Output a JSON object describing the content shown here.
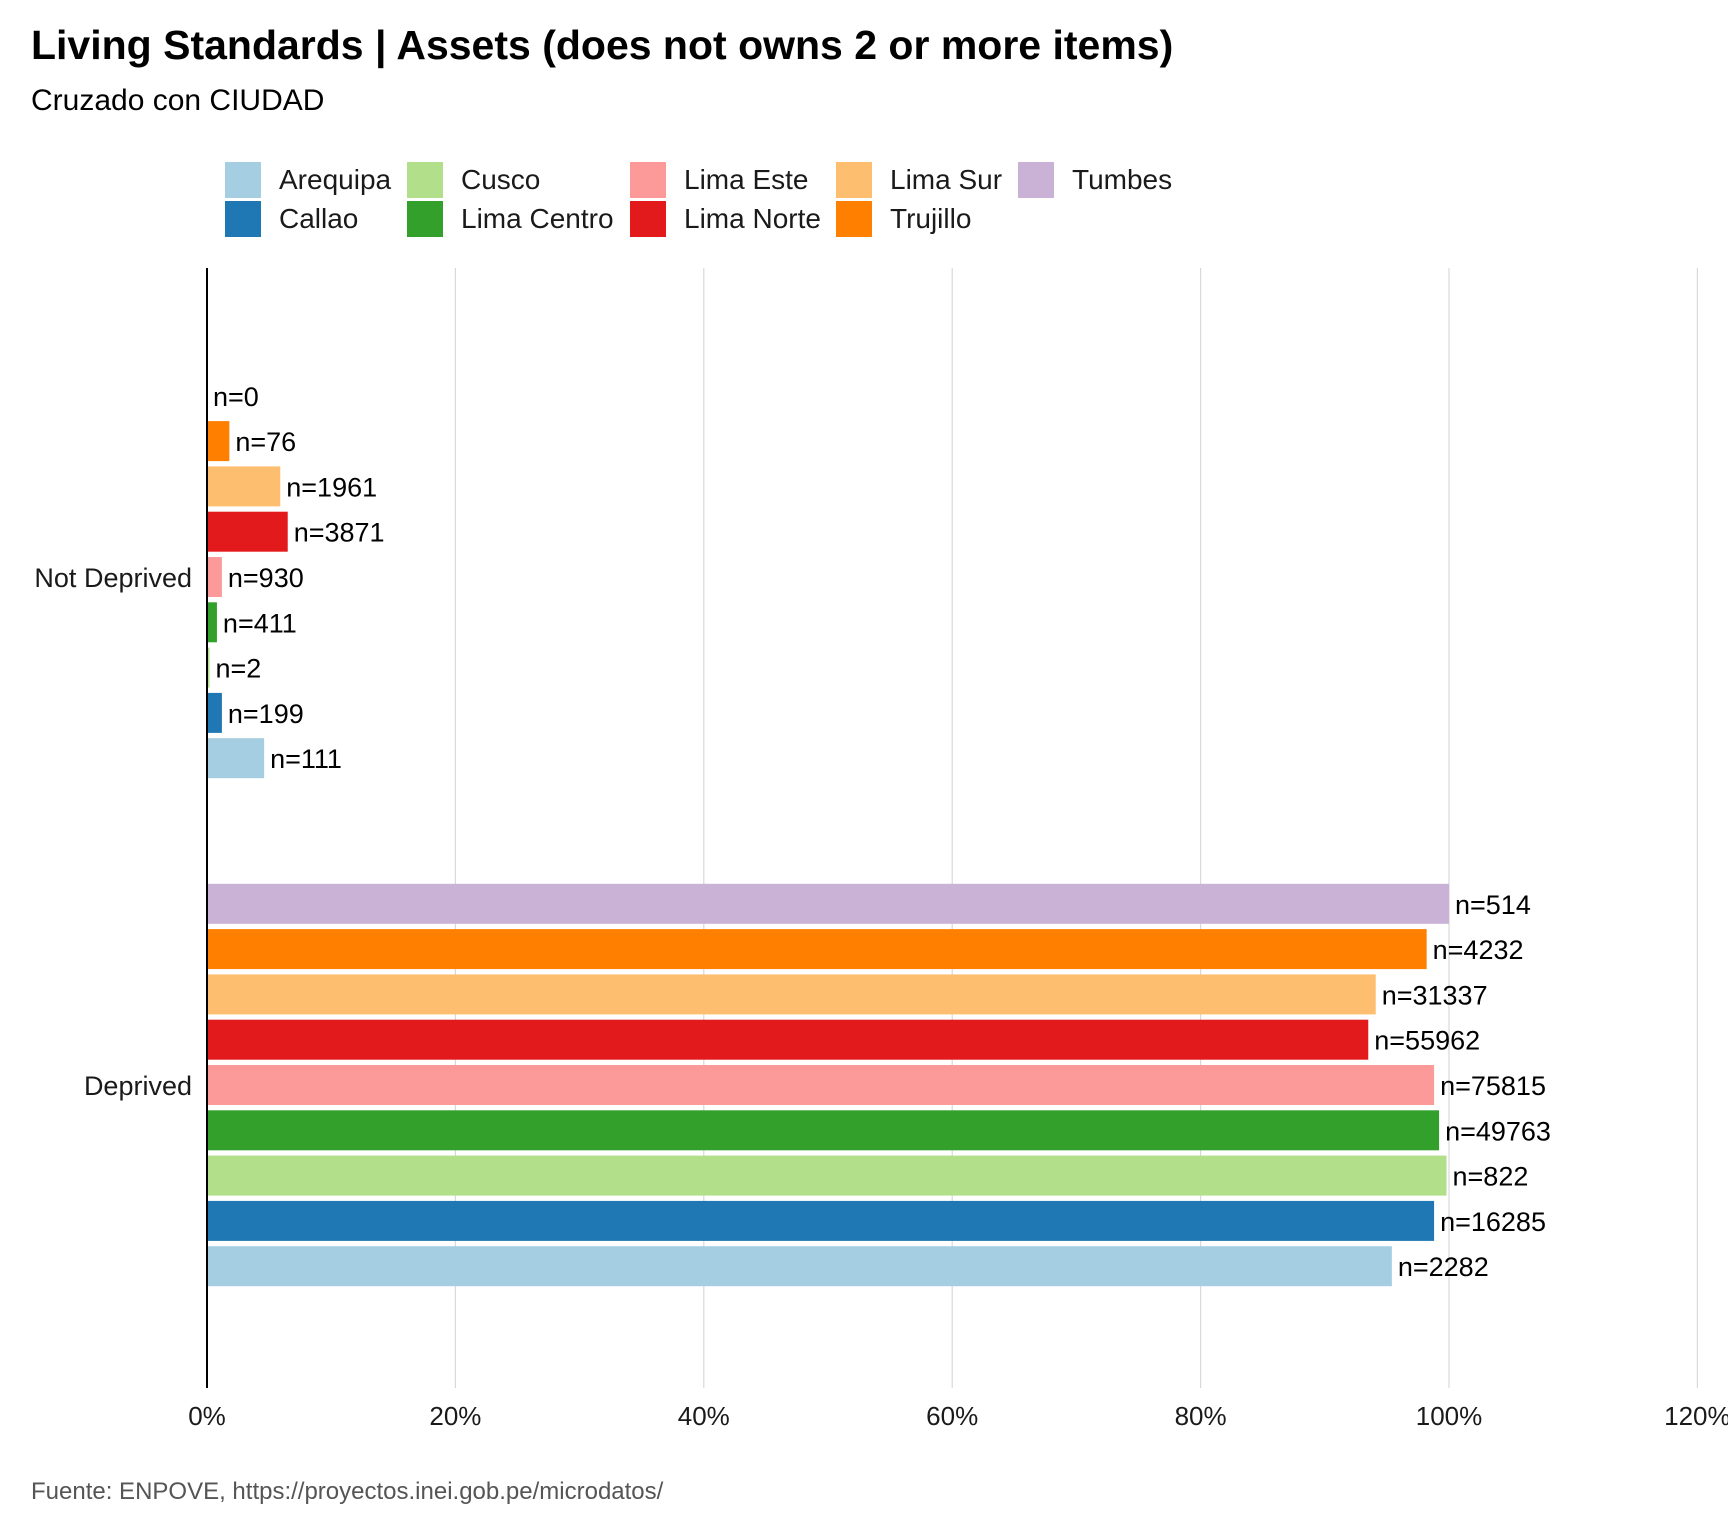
{
  "chart_data": {
    "type": "bar",
    "orientation": "horizontal",
    "title": "Living Standards | Assets (does not owns 2 or more items)",
    "subtitle": "Cruzado con CIUDAD",
    "caption": "Fuente:  ENPOVE, https://proyectos.inei.gob.pe/microdatos/",
    "categories": [
      "Not Deprived",
      "Deprived"
    ],
    "xlim": [
      0,
      120
    ],
    "x_ticks": [
      0,
      20,
      40,
      60,
      80,
      100,
      120
    ],
    "x_tick_labels": [
      "0%",
      "20%",
      "40%",
      "60%",
      "80%",
      "100%",
      "120%"
    ],
    "grid": "vertical major",
    "legend_position": "top",
    "series": [
      {
        "name": "Arequipa",
        "color": "#A6CEE3",
        "values": [
          4.6,
          95.4
        ],
        "labels": [
          "n=111",
          "n=2282"
        ]
      },
      {
        "name": "Callao",
        "color": "#1F78B4",
        "values": [
          1.2,
          98.8
        ],
        "labels": [
          "n=199",
          "n=16285"
        ]
      },
      {
        "name": "Cusco",
        "color": "#B2DF8A",
        "values": [
          0.2,
          99.8
        ],
        "labels": [
          "n=2",
          "n=822"
        ]
      },
      {
        "name": "Lima Centro",
        "color": "#33A02C",
        "values": [
          0.8,
          99.2
        ],
        "labels": [
          "n=411",
          "n=49763"
        ]
      },
      {
        "name": "Lima Este",
        "color": "#FB9A99",
        "values": [
          1.2,
          98.8
        ],
        "labels": [
          "n=930",
          "n=75815"
        ]
      },
      {
        "name": "Lima Norte",
        "color": "#E31A1C",
        "values": [
          6.5,
          93.5
        ],
        "labels": [
          "n=3871",
          "n=55962"
        ]
      },
      {
        "name": "Lima Sur",
        "color": "#FDBF6F",
        "values": [
          5.9,
          94.1
        ],
        "labels": [
          "n=1961",
          "n=31337"
        ]
      },
      {
        "name": "Trujillo",
        "color": "#FF7F00",
        "values": [
          1.8,
          98.2
        ],
        "labels": [
          "n=76",
          "n=4232"
        ]
      },
      {
        "name": "Tumbes",
        "color": "#CAB2D6",
        "values": [
          0.0,
          100.0
        ],
        "labels": [
          "n=0",
          "n=514"
        ]
      }
    ]
  }
}
